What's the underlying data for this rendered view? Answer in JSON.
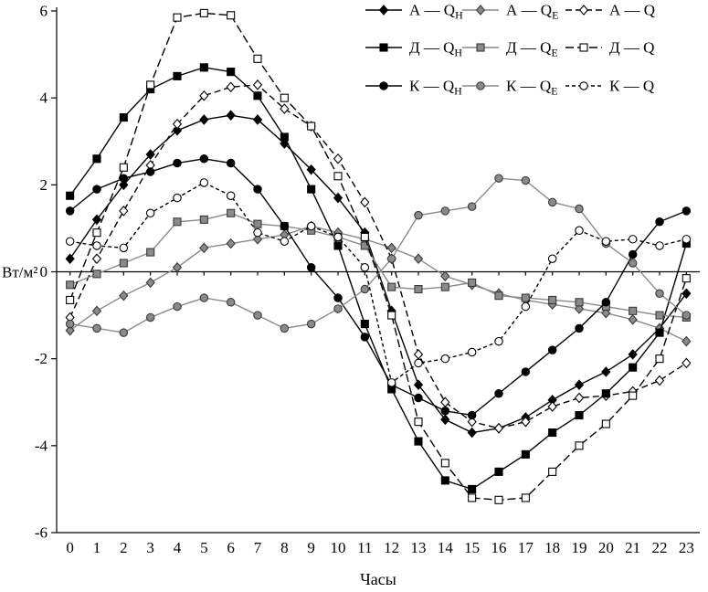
{
  "chart_data": {
    "type": "line",
    "title": "",
    "xlabel": "Часы",
    "ylabel": "Вт/м²",
    "x": [
      0,
      1,
      2,
      3,
      4,
      5,
      6,
      7,
      8,
      9,
      10,
      11,
      12,
      13,
      14,
      15,
      16,
      17,
      18,
      19,
      20,
      21,
      22,
      23
    ],
    "ylim": [
      -6,
      6
    ],
    "yticks": [
      6,
      4,
      2,
      0,
      -2,
      -4,
      -6
    ],
    "grid": false,
    "legend_position": "top-right",
    "legend_columns": 3,
    "colors": {
      "black": "#000000",
      "gray": "#8a8a8a",
      "open_fill": "#ffffff"
    },
    "series": [
      {
        "id": "a-qh",
        "name": "А — Q_Н",
        "label_main": "А — Q",
        "label_sub": "Н",
        "marker": "diamond",
        "fill": "#000000",
        "stroke": "#000000",
        "color": "#000000",
        "line": "solid",
        "values": [
          0.3,
          1.2,
          2.0,
          2.7,
          3.25,
          3.5,
          3.6,
          3.5,
          2.95,
          2.35,
          1.7,
          0.9,
          -0.9,
          -2.6,
          -3.4,
          -3.7,
          -3.6,
          -3.35,
          -2.95,
          -2.6,
          -2.3,
          -1.9,
          -1.3,
          -0.5
        ]
      },
      {
        "id": "a-qe",
        "name": "А — Q_Е",
        "label_main": "А — Q",
        "label_sub": "Е",
        "marker": "diamond",
        "fill": "#8a8a8a",
        "stroke": "#3a3a3a",
        "color": "#8a8a8a",
        "line": "solid",
        "values": [
          -1.35,
          -0.9,
          -0.55,
          -0.25,
          0.1,
          0.55,
          0.65,
          0.75,
          0.85,
          1.05,
          0.9,
          0.75,
          0.55,
          0.3,
          -0.1,
          -0.3,
          -0.5,
          -0.65,
          -0.75,
          -0.85,
          -0.95,
          -1.1,
          -1.3,
          -1.6
        ]
      },
      {
        "id": "a-q",
        "name": "А — Q",
        "label_main": "А — Q",
        "label_sub": "",
        "marker": "diamond",
        "fill": "#ffffff",
        "stroke": "#000000",
        "color": "#000000",
        "line": "dashed",
        "dash": "7 4",
        "values": [
          -1.05,
          0.3,
          1.4,
          2.45,
          3.4,
          4.05,
          4.25,
          4.3,
          3.75,
          3.35,
          2.6,
          1.6,
          0.3,
          -1.9,
          -3.0,
          -3.45,
          -3.6,
          -3.45,
          -3.1,
          -2.9,
          -2.85,
          -2.75,
          -2.5,
          -2.1
        ]
      },
      {
        "id": "d-qh",
        "name": "Д — Q_Н",
        "label_main": "Д — Q",
        "label_sub": "Н",
        "marker": "square",
        "fill": "#000000",
        "stroke": "#000000",
        "color": "#000000",
        "line": "solid",
        "values": [
          1.75,
          2.6,
          3.55,
          4.2,
          4.5,
          4.7,
          4.6,
          4.05,
          3.1,
          1.9,
          0.6,
          -1.2,
          -2.7,
          -3.9,
          -4.8,
          -5.0,
          -4.6,
          -4.2,
          -3.7,
          -3.3,
          -2.8,
          -2.2,
          -1.4,
          0.65
        ]
      },
      {
        "id": "d-qe",
        "name": "Д — Q_Е",
        "label_main": "Д — Q",
        "label_sub": "Е",
        "marker": "square",
        "fill": "#8a8a8a",
        "stroke": "#3a3a3a",
        "color": "#8a8a8a",
        "line": "solid",
        "values": [
          -0.3,
          -0.05,
          0.2,
          0.45,
          1.15,
          1.2,
          1.35,
          1.1,
          1.05,
          0.95,
          0.8,
          0.6,
          -0.35,
          -0.4,
          -0.35,
          -0.25,
          -0.55,
          -0.6,
          -0.65,
          -0.7,
          -0.8,
          -0.9,
          -1.0,
          -1.05
        ]
      },
      {
        "id": "d-q",
        "name": "Д — Q",
        "label_main": "Д — Q",
        "label_sub": "",
        "marker": "square",
        "fill": "#ffffff",
        "stroke": "#000000",
        "color": "#000000",
        "line": "dashed",
        "dash": "9 4",
        "values": [
          -0.65,
          0.9,
          2.4,
          4.3,
          5.85,
          5.95,
          5.9,
          4.9,
          4.0,
          3.35,
          2.2,
          0.8,
          -1.0,
          -3.45,
          -4.4,
          -5.2,
          -5.25,
          -5.2,
          -4.6,
          -4.0,
          -3.5,
          -2.85,
          -2.0,
          -0.15
        ]
      },
      {
        "id": "k-qh",
        "name": "К — Q_Н",
        "label_main": "К — Q",
        "label_sub": "Н",
        "marker": "circle",
        "fill": "#000000",
        "stroke": "#000000",
        "color": "#000000",
        "line": "solid",
        "values": [
          1.4,
          1.9,
          2.15,
          2.3,
          2.5,
          2.6,
          2.5,
          1.9,
          1.05,
          0.1,
          -0.6,
          -1.5,
          -2.6,
          -2.9,
          -3.2,
          -3.3,
          -2.8,
          -2.3,
          -1.8,
          -1.3,
          -0.7,
          0.4,
          1.15,
          1.4
        ]
      },
      {
        "id": "k-qe",
        "name": "К — Q_Е",
        "label_main": "К — Q",
        "label_sub": "Е",
        "marker": "circle",
        "fill": "#8a8a8a",
        "stroke": "#3a3a3a",
        "color": "#8a8a8a",
        "line": "solid",
        "values": [
          -1.2,
          -1.3,
          -1.4,
          -1.05,
          -0.8,
          -0.6,
          -0.7,
          -1.0,
          -1.3,
          -1.2,
          -0.85,
          -0.4,
          0.3,
          1.3,
          1.4,
          1.5,
          2.15,
          2.1,
          1.6,
          1.45,
          0.65,
          0.2,
          -0.5,
          -1.0
        ]
      },
      {
        "id": "k-q",
        "name": "К — Q",
        "label_main": "К — Q",
        "label_sub": "",
        "marker": "circle",
        "fill": "#ffffff",
        "stroke": "#000000",
        "color": "#000000",
        "line": "dashed",
        "dash": "4 3",
        "values": [
          0.7,
          0.6,
          0.55,
          1.35,
          1.7,
          2.05,
          1.75,
          0.9,
          0.7,
          1.05,
          0.8,
          0.1,
          -2.55,
          -2.1,
          -2.0,
          -1.85,
          -1.6,
          -0.8,
          0.3,
          0.95,
          0.7,
          0.75,
          0.6,
          0.75
        ]
      }
    ]
  }
}
